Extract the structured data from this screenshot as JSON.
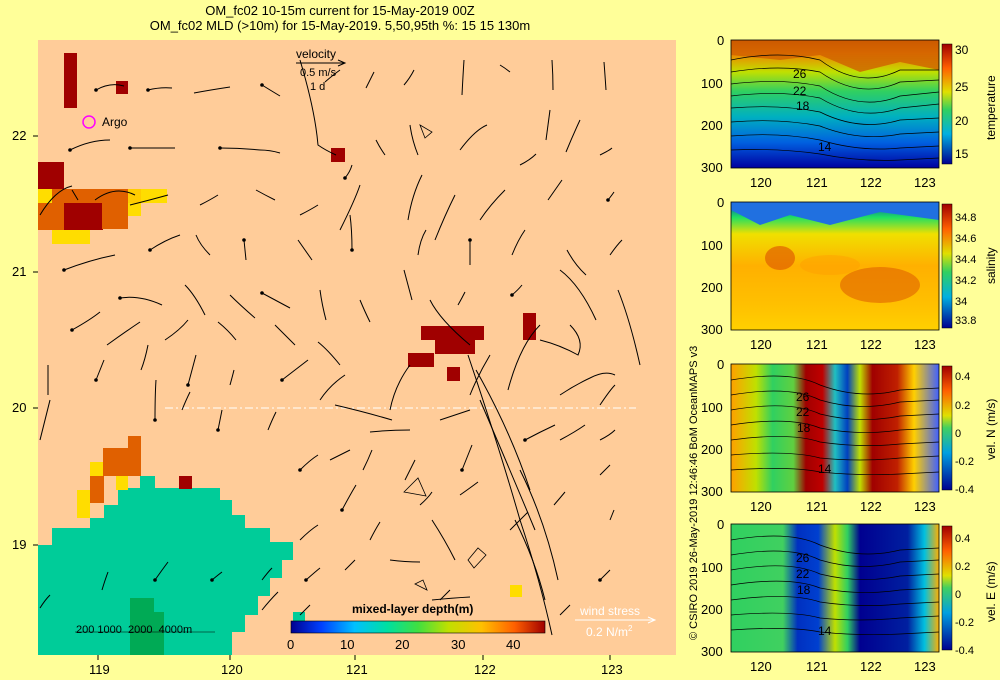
{
  "header": {
    "title_line1": "OM_fc02 10-15m current for 15-May-2019 00Z",
    "title_line2": "OM_fc02 MLD (>10m) for 15-May-2019. 5,50,95th %: 15   15  130m"
  },
  "main_map": {
    "x_ticks": [
      "119",
      "120",
      "121",
      "122",
      "123"
    ],
    "y_ticks": [
      "22",
      "21",
      "20",
      "19"
    ],
    "velocity_legend": {
      "title": "velocity",
      "speed": "0.5 m/s",
      "duration": "1 d"
    },
    "argo_label": "Argo",
    "depth_scale": {
      "text": "200 1000  2000  4000m"
    },
    "mld_colorbar": {
      "title": "mixed-layer depth(m)",
      "ticks": [
        "0",
        "10",
        "20",
        "30",
        "40"
      ]
    },
    "wind_stress": {
      "title": "wind stress",
      "value": "0.2 N/m",
      "superscript": "2"
    },
    "colors": {
      "ocean": "#ffcc99",
      "land": "#00cc99",
      "shallow": "#00aa55",
      "border": "#ffff99"
    }
  },
  "side_panels": [
    {
      "name": "temperature",
      "cb_label": "temperature",
      "cb_ticks": [
        "30",
        "25",
        "20",
        "15"
      ],
      "contours": [
        "26",
        "22",
        "18",
        "14"
      ]
    },
    {
      "name": "salinity",
      "cb_label": "salinity",
      "cb_ticks": [
        "34.8",
        "34.6",
        "34.4",
        "34.2",
        "34",
        "33.8"
      ],
      "contours": []
    },
    {
      "name": "vel-n",
      "cb_label": "vel. N (m/s)",
      "cb_ticks": [
        "0.4",
        "0.2",
        "0",
        "-0.2",
        "-0.4"
      ],
      "contours": [
        "26",
        "22",
        "18",
        "14"
      ]
    },
    {
      "name": "vel-e",
      "cb_label": "vel. E (m/s)",
      "cb_ticks": [
        "0.4",
        "0.2",
        "0",
        "-0.2",
        "-0.4"
      ],
      "contours": [
        "26",
        "22",
        "18",
        "14"
      ]
    }
  ],
  "side_axes": {
    "y_ticks": [
      "0",
      "100",
      "200",
      "300"
    ],
    "x_ticks": [
      "120",
      "121",
      "122",
      "123"
    ]
  },
  "credit": "© CSIRO 2019   26-May-2019 12:46:46 BoM OceanMAPS v3"
}
